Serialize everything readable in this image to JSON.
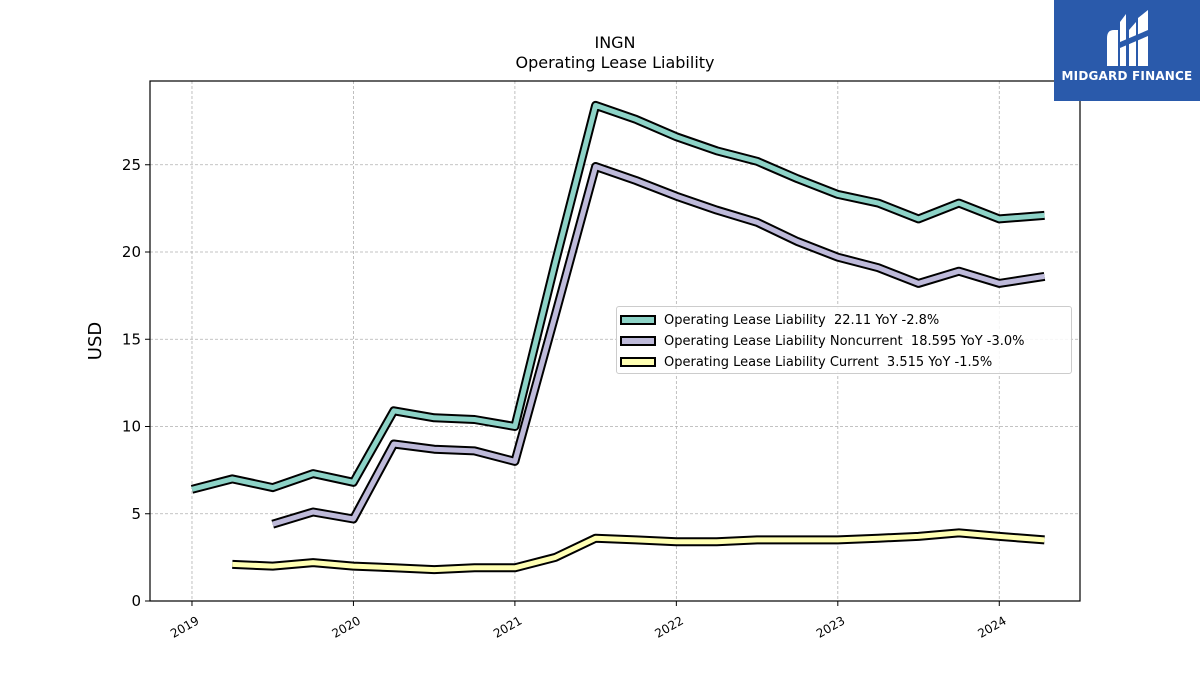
{
  "header": {
    "title": "INGN",
    "subtitle": "Operating Lease Liability"
  },
  "logo": {
    "text": "MIDGARD FINANCE",
    "icon": "midgard-m-icon",
    "background": "#2a5aab"
  },
  "chart_data": {
    "type": "line",
    "title": "INGN",
    "subtitle": "Operating Lease Liability",
    "xlabel": "",
    "ylabel": "USD",
    "xlim": [
      2018.74,
      2024.5
    ],
    "ylim": [
      0,
      29.8
    ],
    "x_ticks": [
      "2019",
      "2020",
      "2021",
      "2022",
      "2023",
      "2024"
    ],
    "y_ticks": [
      0,
      5,
      10,
      15,
      20,
      25
    ],
    "grid": true,
    "legend_position": "center-right",
    "series": [
      {
        "name": "Operating Lease Liability  22.11 YoY -2.8%",
        "color": "#8dd3c7",
        "points": [
          [
            2019.0,
            6.4
          ],
          [
            2019.25,
            7.0
          ],
          [
            2019.5,
            6.5
          ],
          [
            2019.75,
            7.3
          ],
          [
            2020.0,
            6.8
          ],
          [
            2020.25,
            10.9
          ],
          [
            2020.5,
            10.5
          ],
          [
            2020.75,
            10.4
          ],
          [
            2021.0,
            10.0
          ],
          [
            2021.25,
            19.4
          ],
          [
            2021.5,
            28.4
          ],
          [
            2021.75,
            27.6
          ],
          [
            2022.0,
            26.6
          ],
          [
            2022.25,
            25.8
          ],
          [
            2022.5,
            25.2
          ],
          [
            2022.75,
            24.2
          ],
          [
            2023.0,
            23.3
          ],
          [
            2023.25,
            22.8
          ],
          [
            2023.5,
            21.9
          ],
          [
            2023.75,
            22.8
          ],
          [
            2024.0,
            21.9
          ],
          [
            2024.28,
            22.1
          ]
        ]
      },
      {
        "name": "Operating Lease Liability Noncurrent  18.595 YoY -3.0%",
        "color": "#bebada",
        "points": [
          [
            2019.5,
            4.4
          ],
          [
            2019.75,
            5.1
          ],
          [
            2020.0,
            4.7
          ],
          [
            2020.25,
            9.0
          ],
          [
            2020.5,
            8.7
          ],
          [
            2020.75,
            8.6
          ],
          [
            2021.0,
            8.0
          ],
          [
            2021.25,
            16.4
          ],
          [
            2021.5,
            24.9
          ],
          [
            2021.75,
            24.1
          ],
          [
            2022.0,
            23.2
          ],
          [
            2022.25,
            22.4
          ],
          [
            2022.5,
            21.7
          ],
          [
            2022.75,
            20.6
          ],
          [
            2023.0,
            19.7
          ],
          [
            2023.25,
            19.1
          ],
          [
            2023.5,
            18.2
          ],
          [
            2023.75,
            18.9
          ],
          [
            2024.0,
            18.2
          ],
          [
            2024.28,
            18.6
          ]
        ]
      },
      {
        "name": "Operating Lease Liability Current  3.515 YoY -1.5%",
        "color": "#ffffb3",
        "points": [
          [
            2019.25,
            2.1
          ],
          [
            2019.5,
            2.0
          ],
          [
            2019.75,
            2.2
          ],
          [
            2020.0,
            2.0
          ],
          [
            2020.25,
            1.9
          ],
          [
            2020.5,
            1.8
          ],
          [
            2020.75,
            1.9
          ],
          [
            2021.0,
            1.9
          ],
          [
            2021.25,
            2.5
          ],
          [
            2021.5,
            3.6
          ],
          [
            2021.75,
            3.5
          ],
          [
            2022.0,
            3.4
          ],
          [
            2022.25,
            3.4
          ],
          [
            2022.5,
            3.5
          ],
          [
            2022.75,
            3.5
          ],
          [
            2023.0,
            3.5
          ],
          [
            2023.25,
            3.6
          ],
          [
            2023.5,
            3.7
          ],
          [
            2023.75,
            3.9
          ],
          [
            2024.0,
            3.7
          ],
          [
            2024.28,
            3.5
          ]
        ]
      }
    ]
  }
}
